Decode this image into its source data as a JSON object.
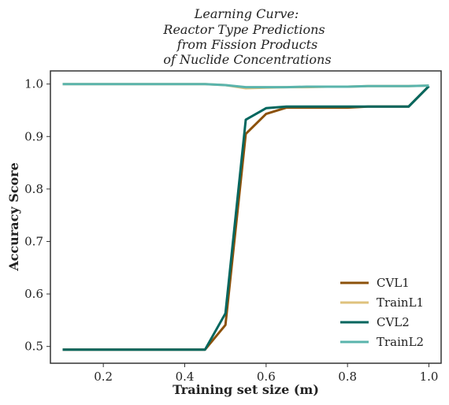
{
  "chart_data": {
    "type": "line",
    "title_lines": [
      "Learning Curve:",
      "Reactor Type Predictions",
      "from Fission Products",
      "of Nuclide Concentrations"
    ],
    "xlabel": "Training set size (m)",
    "ylabel": "Accuracy Score",
    "xlim": [
      0.07,
      1.03
    ],
    "ylim": [
      0.468,
      1.025
    ],
    "xticks": [
      0.2,
      0.4,
      0.6,
      0.8,
      1.0
    ],
    "xtick_labels": [
      "0.2",
      "0.4",
      "0.6",
      "0.8",
      "1.0"
    ],
    "yticks": [
      0.5,
      0.6,
      0.7,
      0.8,
      0.9,
      1.0
    ],
    "ytick_labels": [
      "0.5",
      "0.6",
      "0.7",
      "0.8",
      "0.9",
      "1.0"
    ],
    "grid": false,
    "legend_position": "lower-right",
    "x": [
      0.1,
      0.15,
      0.2,
      0.25,
      0.3,
      0.35,
      0.4,
      0.45,
      0.5,
      0.55,
      0.6,
      0.65,
      0.7,
      0.75,
      0.8,
      0.85,
      0.9,
      0.95,
      1.0
    ],
    "series": [
      {
        "name": "CVL1",
        "color": "#8c510a",
        "values": [
          0.494,
          0.494,
          0.494,
          0.494,
          0.494,
          0.494,
          0.494,
          0.494,
          0.541,
          0.905,
          0.943,
          0.955,
          0.955,
          0.955,
          0.955,
          0.957,
          0.957,
          0.957,
          0.996
        ]
      },
      {
        "name": "TrainL1",
        "color": "#dfc27d",
        "values": [
          1.0,
          1.0,
          1.0,
          1.0,
          1.0,
          1.0,
          1.0,
          1.0,
          0.998,
          0.992,
          0.993,
          0.994,
          0.994,
          0.995,
          0.995,
          0.996,
          0.996,
          0.996,
          0.997
        ]
      },
      {
        "name": "CVL2",
        "color": "#01665e",
        "values": [
          0.494,
          0.494,
          0.494,
          0.494,
          0.494,
          0.494,
          0.494,
          0.494,
          0.563,
          0.932,
          0.954,
          0.957,
          0.957,
          0.957,
          0.957,
          0.957,
          0.957,
          0.957,
          0.996
        ]
      },
      {
        "name": "TrainL2",
        "color": "#5ab4ac",
        "values": [
          1.0,
          1.0,
          1.0,
          1.0,
          1.0,
          1.0,
          1.0,
          1.0,
          0.998,
          0.994,
          0.994,
          0.994,
          0.995,
          0.995,
          0.995,
          0.996,
          0.996,
          0.996,
          0.997
        ]
      }
    ]
  }
}
